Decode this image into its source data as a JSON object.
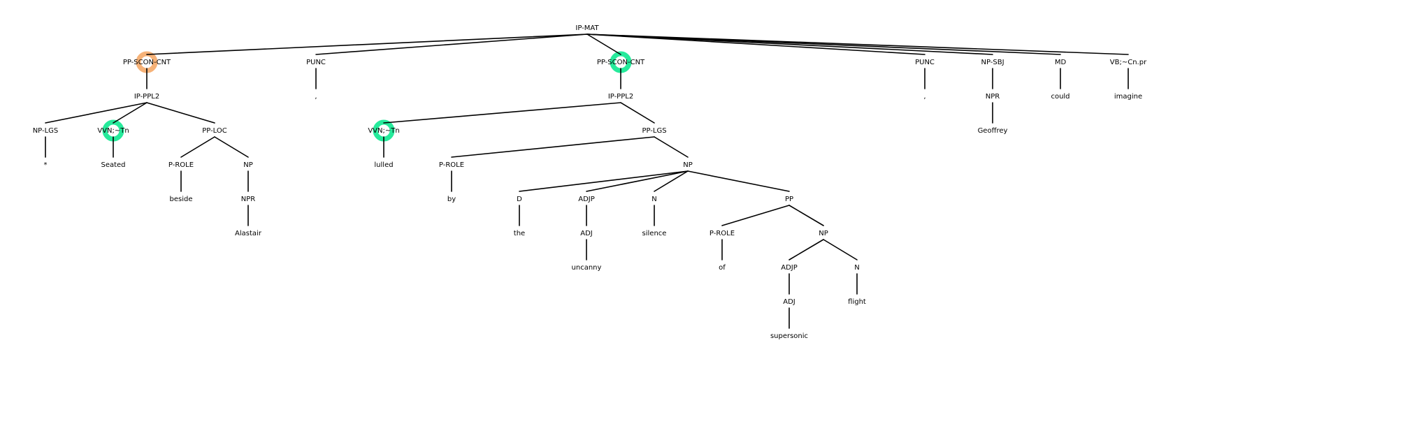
{
  "colors": {
    "edge": "#000000",
    "orange_marker": "#f4a460",
    "green_marker": "#00e68a"
  },
  "nodes": [
    {
      "id": "root",
      "label": "IP-MAT"
    },
    {
      "id": "n1",
      "label": "PP-SCON-CNT",
      "parent": "root",
      "marker": "orange"
    },
    {
      "id": "n2",
      "label": "IP-PPL2",
      "parent": "n1"
    },
    {
      "id": "n3",
      "label": "NP-LGS",
      "parent": "n2"
    },
    {
      "id": "n4",
      "label": "*",
      "parent": "n3"
    },
    {
      "id": "n5",
      "label": "VVN;~Tn",
      "parent": "n2",
      "marker": "green"
    },
    {
      "id": "n6",
      "label": "Seated",
      "parent": "n5"
    },
    {
      "id": "n7",
      "label": "PP-LOC",
      "parent": "n2"
    },
    {
      "id": "n8",
      "label": "P-ROLE",
      "parent": "n7"
    },
    {
      "id": "n9",
      "label": "beside",
      "parent": "n8"
    },
    {
      "id": "n10",
      "label": "NP",
      "parent": "n7"
    },
    {
      "id": "n11",
      "label": "NPR",
      "parent": "n10"
    },
    {
      "id": "n12",
      "label": "Alastair",
      "parent": "n11"
    },
    {
      "id": "n13",
      "label": "PUNC",
      "parent": "root"
    },
    {
      "id": "n14",
      "label": ",",
      "parent": "n13"
    },
    {
      "id": "n15",
      "label": "PP-SCON-CNT",
      "parent": "root",
      "marker": "green"
    },
    {
      "id": "n16",
      "label": "IP-PPL2",
      "parent": "n15"
    },
    {
      "id": "n17",
      "label": "VVN;~Tn",
      "parent": "n16",
      "marker": "green"
    },
    {
      "id": "n18",
      "label": "lulled",
      "parent": "n17"
    },
    {
      "id": "n19",
      "label": "PP-LGS",
      "parent": "n16"
    },
    {
      "id": "n20",
      "label": "P-ROLE",
      "parent": "n19"
    },
    {
      "id": "n21",
      "label": "by",
      "parent": "n20"
    },
    {
      "id": "n22",
      "label": "NP",
      "parent": "n19"
    },
    {
      "id": "n23",
      "label": "D",
      "parent": "n22"
    },
    {
      "id": "n24",
      "label": "the",
      "parent": "n23"
    },
    {
      "id": "n25",
      "label": "ADJP",
      "parent": "n22"
    },
    {
      "id": "n26",
      "label": "ADJ",
      "parent": "n25"
    },
    {
      "id": "n27",
      "label": "uncanny",
      "parent": "n26"
    },
    {
      "id": "n28",
      "label": "N",
      "parent": "n22"
    },
    {
      "id": "n29",
      "label": "silence",
      "parent": "n28"
    },
    {
      "id": "n30",
      "label": "PP",
      "parent": "n22"
    },
    {
      "id": "n31",
      "label": "P-ROLE",
      "parent": "n30"
    },
    {
      "id": "n32",
      "label": "of",
      "parent": "n31"
    },
    {
      "id": "n33",
      "label": "NP",
      "parent": "n30"
    },
    {
      "id": "n34",
      "label": "ADJP",
      "parent": "n33"
    },
    {
      "id": "n35",
      "label": "ADJ",
      "parent": "n34"
    },
    {
      "id": "n36",
      "label": "supersonic",
      "parent": "n35"
    },
    {
      "id": "n37",
      "label": "N",
      "parent": "n33"
    },
    {
      "id": "n38",
      "label": "flight",
      "parent": "n37"
    },
    {
      "id": "n39",
      "label": "PUNC",
      "parent": "root"
    },
    {
      "id": "n40",
      "label": ",",
      "parent": "n39"
    },
    {
      "id": "n41",
      "label": "NP-SBJ",
      "parent": "root"
    },
    {
      "id": "n42",
      "label": "NPR",
      "parent": "n41"
    },
    {
      "id": "n43",
      "label": "Geoffrey",
      "parent": "n42"
    },
    {
      "id": "n44",
      "label": "MD",
      "parent": "root"
    },
    {
      "id": "n45",
      "label": "could",
      "parent": "n44"
    },
    {
      "id": "n46",
      "label": "VB;~Cn.pr",
      "parent": "root"
    },
    {
      "id": "n47",
      "label": "imagine",
      "parent": "n46"
    }
  ]
}
